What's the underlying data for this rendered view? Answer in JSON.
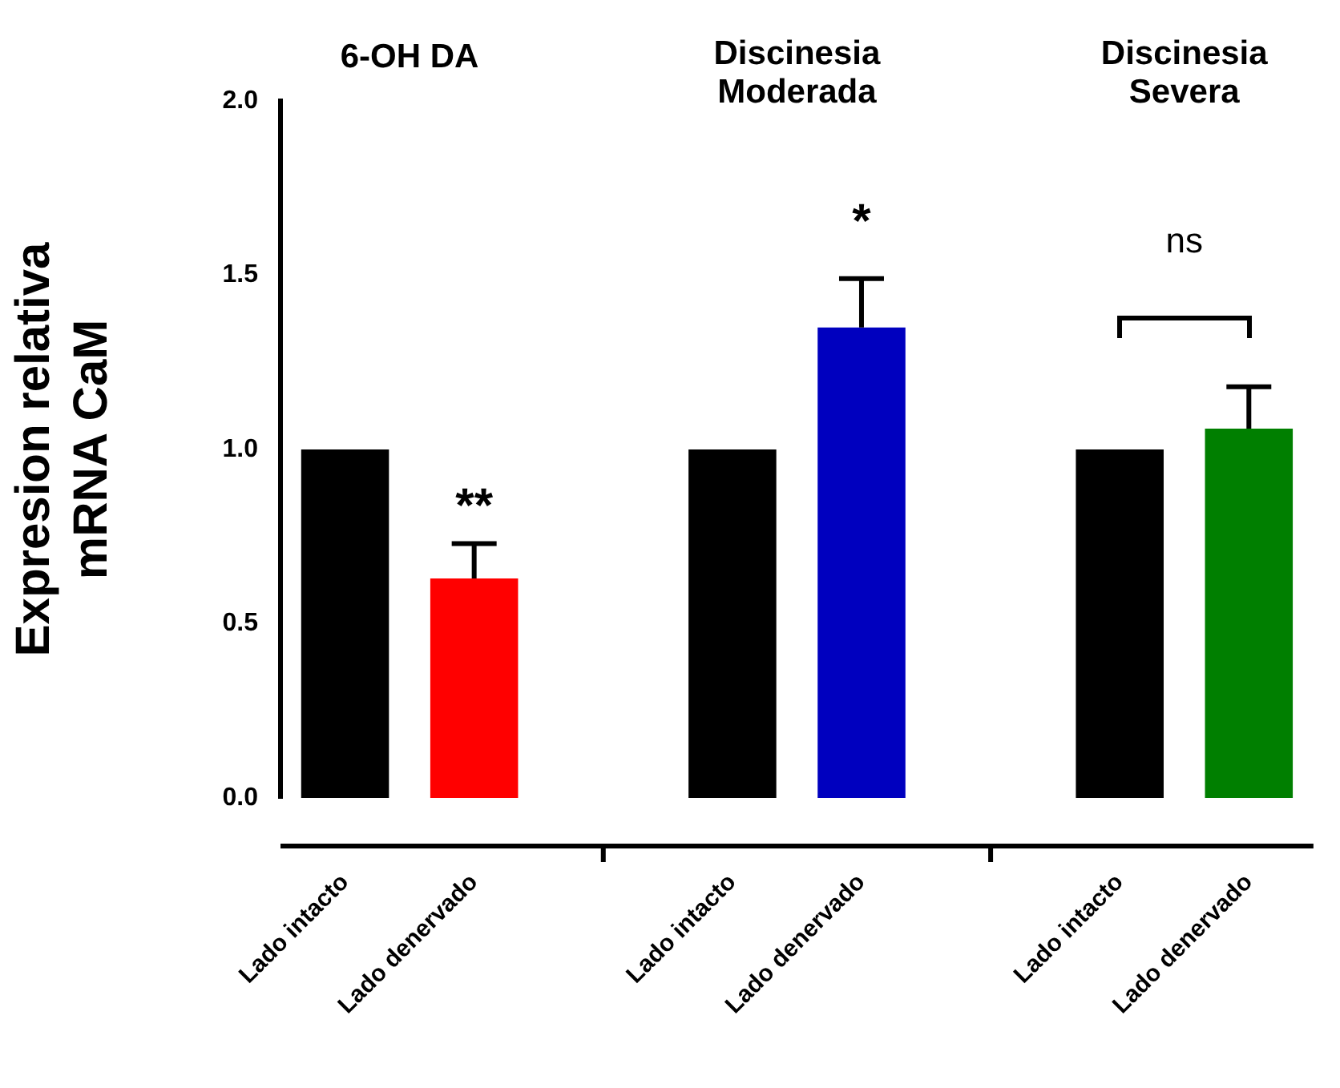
{
  "chart_data": {
    "type": "bar",
    "ylabel": "Expresion relativa\nmRNA CaM",
    "categories": [
      "Lado intacto",
      "Lado denervado",
      null,
      "Lado intacto",
      "Lado denervado",
      null,
      "Lado intacto",
      "Lado denervado"
    ],
    "values": [
      1,
      0.63,
      null,
      1,
      1.35,
      null,
      1,
      1.06
    ],
    "colors": [
      "#000000",
      "#ff0000",
      null,
      "#000000",
      "#0000bf",
      null,
      "#000000",
      "#007f00"
    ],
    "errors": [
      null,
      [
        0.63,
        0.73
      ],
      null,
      null,
      [
        1.35,
        1.49
      ],
      null,
      null,
      [
        1.06,
        1.18
      ]
    ],
    "ylim": [
      0,
      2
    ],
    "yticks": [
      {
        "value": 0,
        "label": "0.0"
      },
      {
        "value": 0.5,
        "label": "0.5"
      },
      {
        "value": 1,
        "label": "1.0"
      },
      {
        "value": 1.5,
        "label": "1.5"
      },
      {
        "value": 2,
        "label": "2.0"
      }
    ],
    "annotations": [
      "6-OH DA",
      "Discinesia\nModerada",
      "Discinesia\nSevera",
      "**",
      "*",
      "ns"
    ],
    "grid": false,
    "legend": false
  }
}
